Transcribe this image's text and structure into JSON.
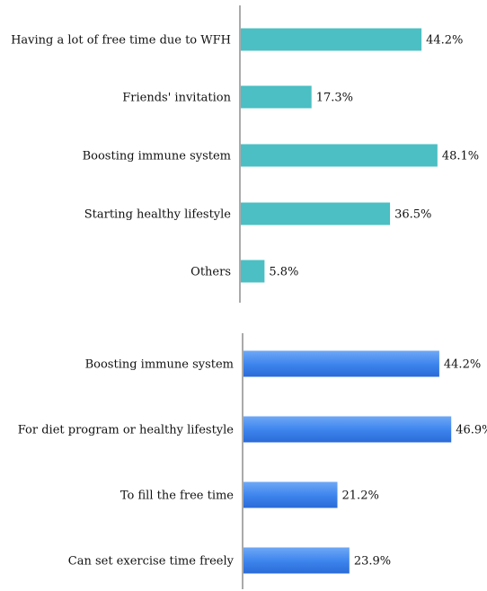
{
  "colors": {
    "chart1_bar": "#4bbfc3",
    "chart2_bar_top": "#6fa8f5",
    "chart2_bar_mid": "#3f86ee",
    "chart2_bar_bottom": "#2a6ad8",
    "axis": "#555555",
    "text": "#111111",
    "background": "#ffffff"
  },
  "chart_data": [
    {
      "type": "bar",
      "orientation": "horizontal",
      "categories": [
        "Having a lot of free time due to WFH",
        "Friends' invitation",
        "Boosting immune system",
        "Starting healthy lifestyle",
        "Others"
      ],
      "values": [
        44.2,
        17.3,
        48.1,
        36.5,
        5.8
      ],
      "value_labels": [
        "44.2%",
        "17.3%",
        "48.1%",
        "36.5%",
        "5.8%"
      ],
      "unit": "%",
      "xlim": [
        0,
        60
      ],
      "grid": false,
      "legend": "none"
    },
    {
      "type": "bar",
      "orientation": "horizontal",
      "categories": [
        "Boosting immune system",
        "For diet program or healthy lifestyle",
        "To fill the free time",
        "Can set exercise time freely"
      ],
      "values": [
        44.2,
        46.9,
        21.2,
        23.9
      ],
      "value_labels": [
        "44.2%",
        "46.9%",
        "21.2%",
        "23.9%"
      ],
      "unit": "%",
      "xlim": [
        0,
        50
      ],
      "grid": false,
      "legend": "none"
    }
  ]
}
